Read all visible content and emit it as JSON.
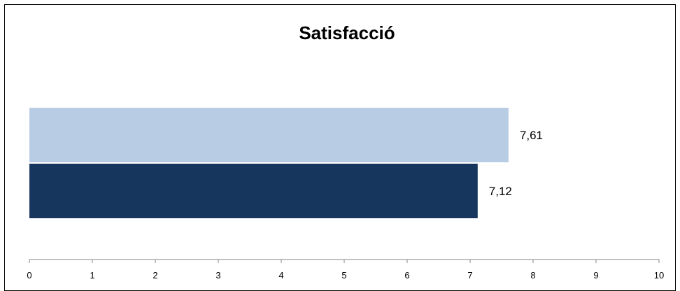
{
  "chart_data": {
    "type": "bar",
    "orientation": "horizontal",
    "title": "Satisfacció",
    "xlim": [
      0,
      10
    ],
    "ticks": [
      "0",
      "1",
      "2",
      "3",
      "4",
      "5",
      "6",
      "7",
      "8",
      "9",
      "10"
    ],
    "series": [
      {
        "values": [
          7.61
        ],
        "label": "7,61",
        "color": "#b8cce4"
      },
      {
        "values": [
          7.12
        ],
        "label": "7,12",
        "color": "#17365d"
      }
    ],
    "grid": false,
    "legend": "none"
  }
}
